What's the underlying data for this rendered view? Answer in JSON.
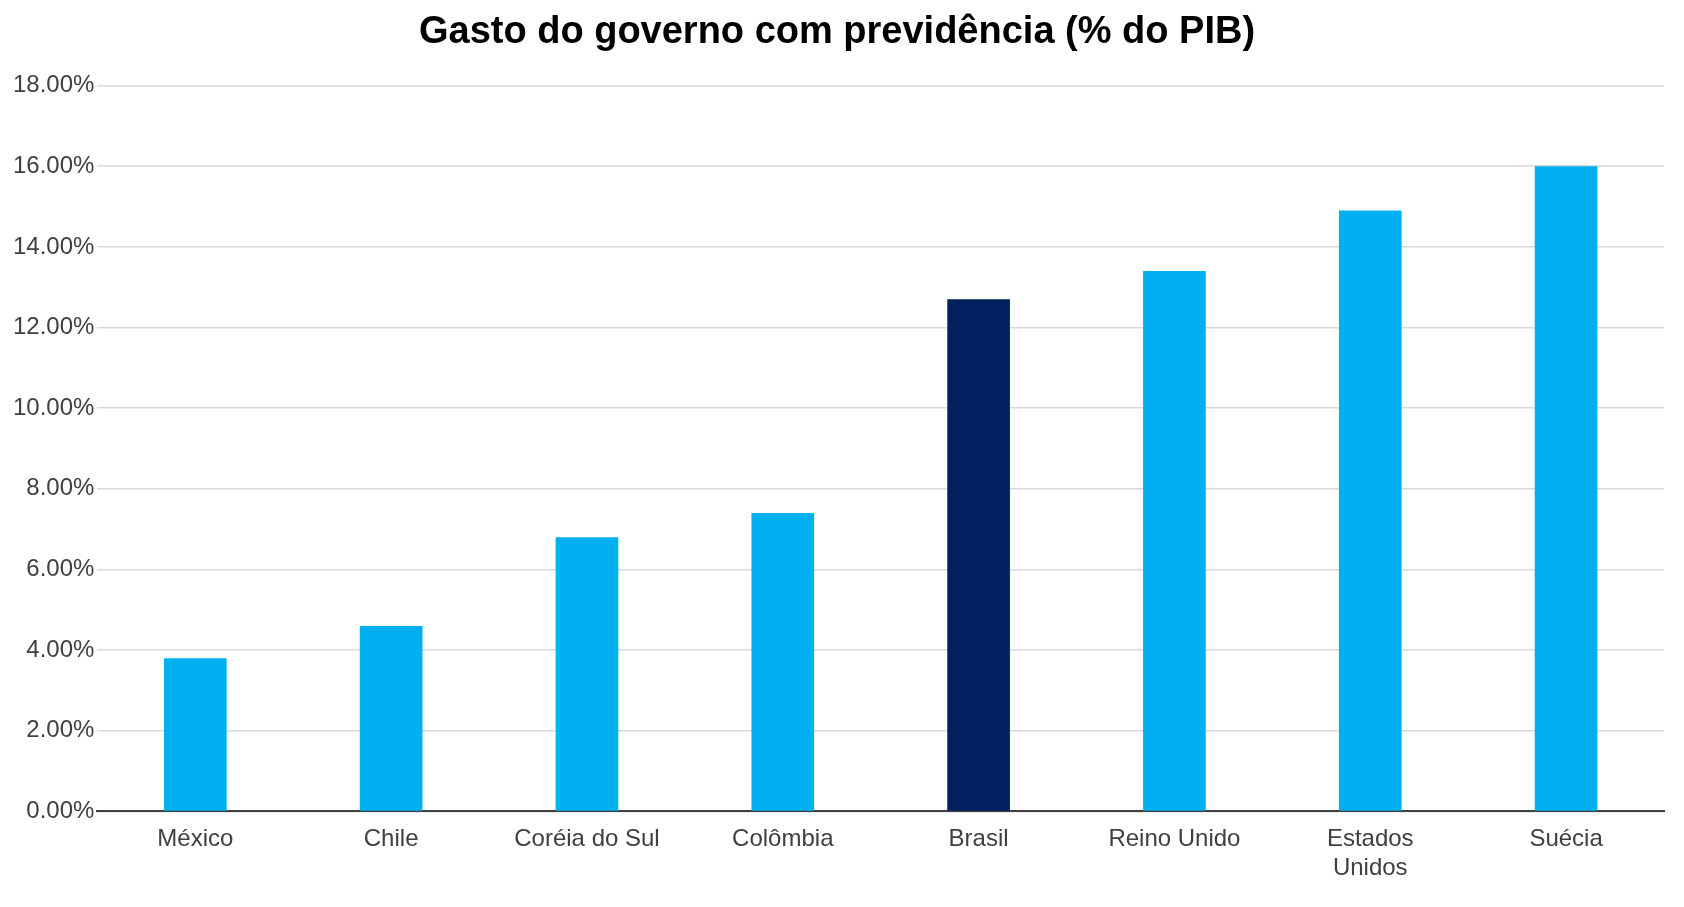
{
  "chart_data": {
    "type": "bar",
    "title": "Gasto do governo com previdência (% do PIB)",
    "categories": [
      "México",
      "Chile",
      "Coréia do Sul",
      "Colômbia",
      "Brasil",
      "Reino Unido",
      "Estados Unidos",
      "Suécia"
    ],
    "values": [
      3.8,
      4.6,
      6.8,
      7.4,
      12.7,
      13.4,
      14.9,
      16.0
    ],
    "colors": [
      "#00b0f0",
      "#00b0f0",
      "#00b0f0",
      "#00b0f0",
      "#002060",
      "#00b0f0",
      "#00b0f0",
      "#00b0f0"
    ],
    "ylim": [
      0,
      18
    ],
    "yticks": [
      {
        "value": 0,
        "label": "0.00%"
      },
      {
        "value": 2,
        "label": "2.00%"
      },
      {
        "value": 4,
        "label": "4.00%"
      },
      {
        "value": 6,
        "label": "6.00%"
      },
      {
        "value": 8,
        "label": "8.00%"
      },
      {
        "value": 10,
        "label": "10.00%"
      },
      {
        "value": 12,
        "label": "12.00%"
      },
      {
        "value": 14,
        "label": "14.00%"
      },
      {
        "value": 16,
        "label": "16.00%"
      },
      {
        "value": 18,
        "label": "18.00%"
      }
    ],
    "grid": "y",
    "legend": false
  }
}
